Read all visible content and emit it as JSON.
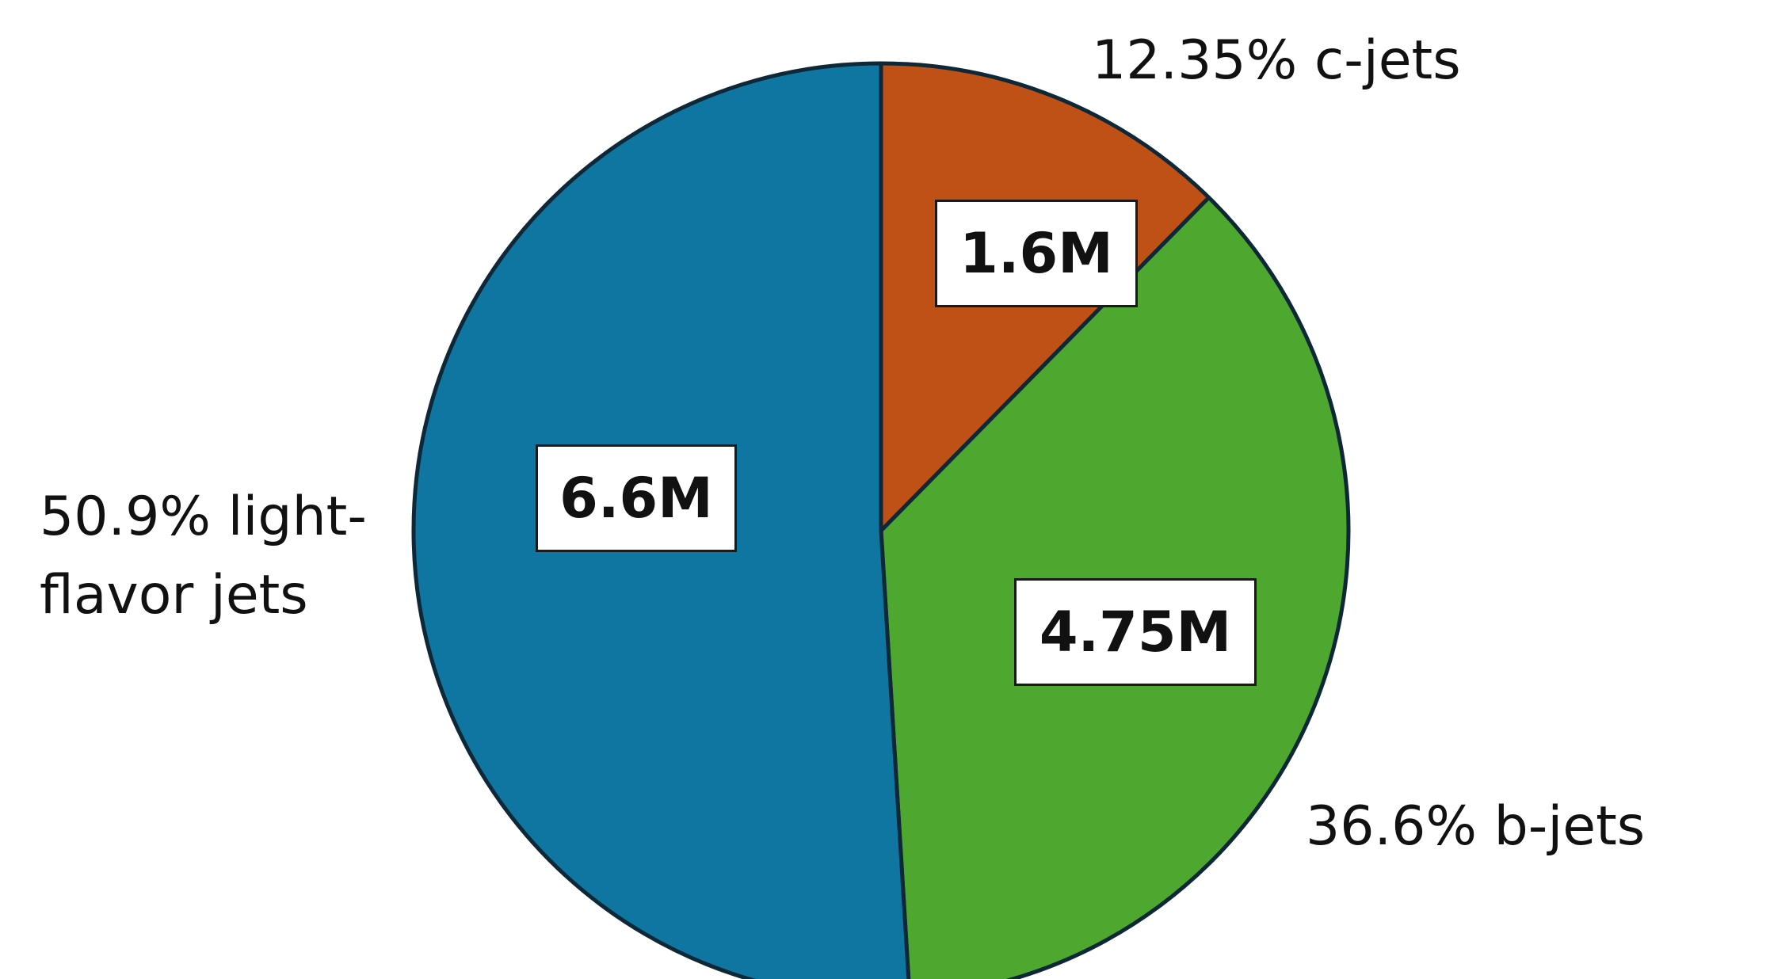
{
  "chart_data": {
    "type": "pie",
    "series": [
      {
        "category": "c-jets",
        "percent": 12.35,
        "percent_label": "12.35%",
        "label": "12.35% c-jets",
        "value_label": "1.6M",
        "color": "#c05116"
      },
      {
        "category": "b-jets",
        "percent": 36.6,
        "percent_label": "36.6%",
        "label": "36.6% b-jets",
        "value_label": "4.75M",
        "color": "#4ea72e"
      },
      {
        "category": "light-flavor jets",
        "percent": 50.9,
        "percent_label": "50.9%",
        "label_lines": [
          "50.9% light-",
          "flavor jets"
        ],
        "value_label": "6.6M",
        "color": "#0e76a0"
      }
    ],
    "edge_color": "#0e2838",
    "start": "top",
    "direction": "clockwise"
  }
}
